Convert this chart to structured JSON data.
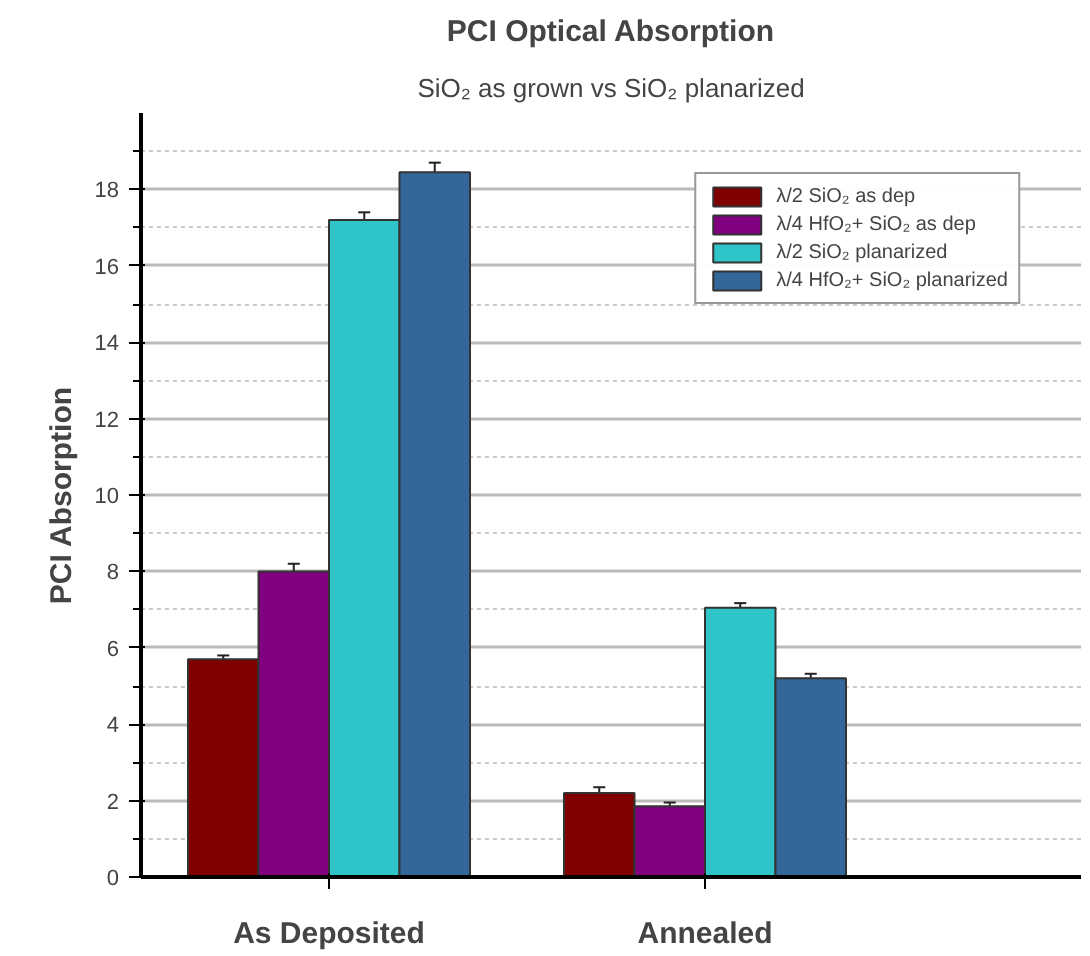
{
  "chart_data": {
    "type": "bar",
    "title": "PCI Optical Absorption",
    "subtitle": "SiO₂ as grown vs SiO₂ planarized",
    "ylabel": "PCI Absorption",
    "categories": [
      "As Deposited",
      "Annealed"
    ],
    "series": [
      {
        "name": "λ/2 SiO₂ as dep",
        "color": "#800000",
        "values": [
          5.7,
          2.2
        ],
        "errors": [
          0.1,
          0.15
        ]
      },
      {
        "name": "λ/4 HfO₂+ SiO₂ as dep",
        "color": "#800080",
        "values": [
          8.0,
          1.85
        ],
        "errors": [
          0.2,
          0.1
        ]
      },
      {
        "name": "λ/2 SiO₂ planarized",
        "color": "#2ec4c8",
        "values": [
          17.2,
          7.05
        ],
        "errors": [
          0.2,
          0.12
        ]
      },
      {
        "name": "λ/4 HfO₂+ SiO₂ planarized",
        "color": "#336699",
        "values": [
          18.45,
          5.2
        ],
        "errors": [
          0.25,
          0.12
        ]
      }
    ],
    "ylim": [
      0,
      20
    ],
    "yticks": [
      0,
      2,
      4,
      6,
      8,
      10,
      12,
      14,
      16,
      18
    ],
    "grid": "y",
    "legend": "top right"
  }
}
